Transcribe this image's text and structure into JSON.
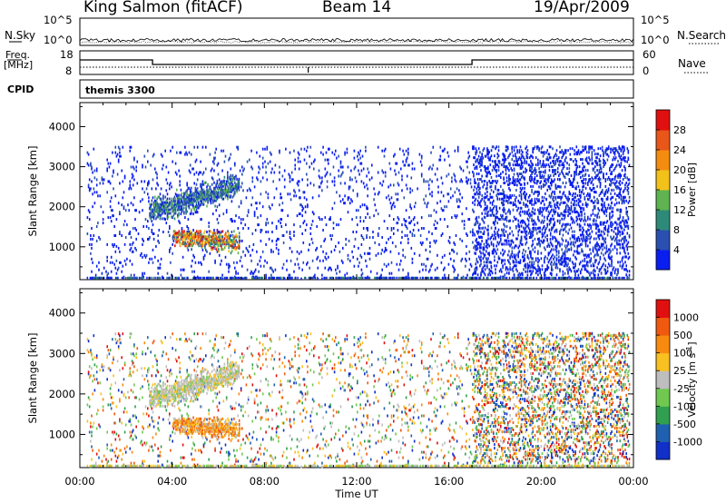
{
  "header": {
    "station": "King Salmon (fitACF)",
    "beam": "Beam 14",
    "date": "19/Apr/2009"
  },
  "strip_labels": {
    "nsky": "N.Sky",
    "nsearch": "N.Search",
    "freq_line1": "Freq.",
    "freq_line2": "[MHz]",
    "nave": "Nave",
    "cpid": "CPID",
    "cpid_value": "themis 3300",
    "nsky_ticks": [
      "10^5",
      "10^0"
    ],
    "nsearch_ticks": [
      "10^5",
      "10^0"
    ],
    "freq_ticks": [
      "18",
      "8"
    ],
    "nave_ticks": [
      "60",
      "0"
    ]
  },
  "chart_data": [
    {
      "type": "heatmap",
      "panel": "power",
      "ylabel": "Slant Range [km]",
      "ylim": [
        180,
        4600
      ],
      "yticks": [
        1000,
        2000,
        3000,
        4000
      ],
      "xlim": [
        0,
        24
      ],
      "colorbar": {
        "label": "Power [dB]",
        "ticks": [
          "28",
          "24",
          "20",
          "16",
          "12",
          "8",
          "4"
        ],
        "colors": [
          "#0a1ef0",
          "#2a4fb0",
          "#2e8a78",
          "#5fb350",
          "#f2c21a",
          "#f48c10",
          "#e8561a",
          "#e01010"
        ]
      },
      "regions": [
        {
          "t": [
            0.3,
            23.8
          ],
          "r": [
            200,
            3500
          ],
          "density": "sparse",
          "level": "low"
        },
        {
          "t": [
            17.0,
            23.8
          ],
          "r": [
            300,
            3500
          ],
          "density": "moderate",
          "level": "low"
        },
        {
          "t": [
            3.0,
            6.9
          ],
          "r": [
            1700,
            2800
          ],
          "density": "dense",
          "level": "low-moderate"
        },
        {
          "t": [
            4.0,
            6.9
          ],
          "r": [
            800,
            1400
          ],
          "density": "dense",
          "level": "high",
          "peak_t": 6.4,
          "peak_r": 1000
        },
        {
          "t": [
            9.0,
            18.0
          ],
          "r": [
            200,
            600
          ],
          "density": "dense",
          "level": "mixed"
        }
      ]
    },
    {
      "type": "heatmap",
      "panel": "velocity",
      "ylabel": "Slant Range [km]",
      "ylim": [
        180,
        4600
      ],
      "yticks": [
        1000,
        2000,
        3000,
        4000
      ],
      "xlim": [
        0,
        24
      ],
      "xticks": [
        "00:00",
        "04:00",
        "08:00",
        "12:00",
        "16:00",
        "20:00",
        "00:00"
      ],
      "xlabel": "Time UT",
      "colorbar": {
        "label": "Velocity [m s-1]",
        "ticks": [
          "1000",
          "500",
          "100",
          "25",
          "-25",
          "-100",
          "-500",
          "-1000"
        ],
        "colors": [
          "#1030c8",
          "#2060b0",
          "#30a050",
          "#70c850",
          "#bebebe",
          "#f8c020",
          "#f88a10",
          "#f05a10",
          "#e01010"
        ]
      },
      "regions": [
        {
          "t": [
            0.3,
            23.8
          ],
          "r": [
            200,
            3500
          ],
          "density": "sparse",
          "velocity": "mixed"
        },
        {
          "t": [
            17.0,
            23.8
          ],
          "r": [
            300,
            3500
          ],
          "density": "moderate",
          "velocity": "mixed"
        },
        {
          "t": [
            3.0,
            6.9
          ],
          "r": [
            1700,
            2800
          ],
          "density": "dense",
          "velocity": "near zero"
        },
        {
          "t": [
            4.0,
            6.9
          ],
          "r": [
            800,
            1400
          ],
          "density": "dense",
          "velocity": "-100 to -500"
        },
        {
          "t": [
            9.0,
            18.0
          ],
          "r": [
            200,
            600
          ],
          "density": "dense",
          "velocity": "near zero"
        }
      ]
    }
  ]
}
